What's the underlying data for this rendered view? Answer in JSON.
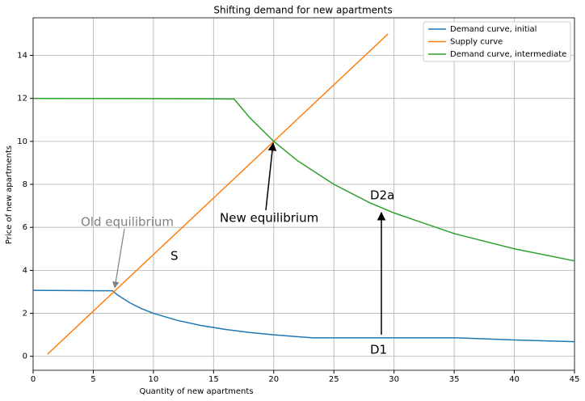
{
  "chart_data": {
    "type": "line",
    "title": "Shifting demand for new apartments",
    "x_label": "Quantity of new apartments",
    "y_label": "Price of new apartments",
    "xlim": [
      0,
      45
    ],
    "ylim": [
      -0.65,
      15.75
    ],
    "xticks": [
      0,
      5,
      10,
      15,
      20,
      25,
      30,
      35,
      40,
      45
    ],
    "yticks": [
      0,
      2,
      4,
      6,
      8,
      10,
      12,
      14
    ],
    "grid": true,
    "legend": "upper right",
    "series": [
      {
        "name": "Demand curve, initial",
        "color": "#1f77b4",
        "x": [
          0,
          6.6,
          7,
          8,
          9,
          10,
          12,
          14,
          16,
          18,
          20,
          22,
          23.3,
          30,
          35.3,
          40,
          45
        ],
        "values": [
          3.07,
          3.05,
          2.86,
          2.5,
          2.22,
          2.0,
          1.67,
          1.43,
          1.25,
          1.11,
          1.0,
          0.91,
          0.86,
          0.86,
          0.86,
          0.76,
          0.68
        ]
      },
      {
        "name": "Supply curve",
        "color": "#ff7f0e",
        "x": [
          1.2,
          29.5
        ],
        "values": [
          0.1,
          15.0
        ]
      },
      {
        "name": "Demand curve, intermediate",
        "color": "#2ca02c",
        "x": [
          0,
          10,
          16.7,
          18,
          20,
          22,
          25,
          28,
          30,
          35,
          40,
          45
        ],
        "values": [
          12,
          11.99,
          11.97,
          11.11,
          10,
          9.09,
          8,
          7.14,
          6.67,
          5.71,
          5,
          4.44
        ]
      }
    ],
    "annotations": [
      "Old equilibrium",
      "New equilibrium",
      "S",
      "D2a",
      "D1"
    ]
  }
}
